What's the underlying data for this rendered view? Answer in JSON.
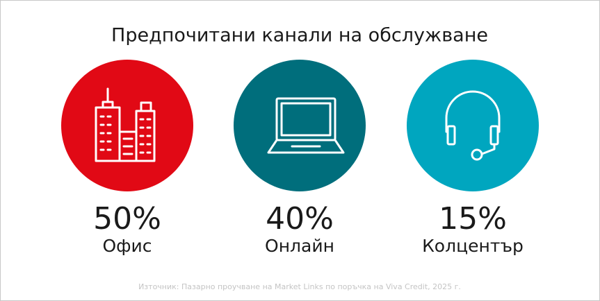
{
  "title": "Предпочитани канали на обслужване",
  "items": [
    {
      "percent": "50%",
      "label": "Офис"
    },
    {
      "percent": "40%",
      "label": "Онлайн"
    },
    {
      "percent": "15%",
      "label": "Колцентър"
    }
  ],
  "source": "Източник: Пазарно проучване на Market Links по поръчка на Viva Credit, 2025 г."
}
